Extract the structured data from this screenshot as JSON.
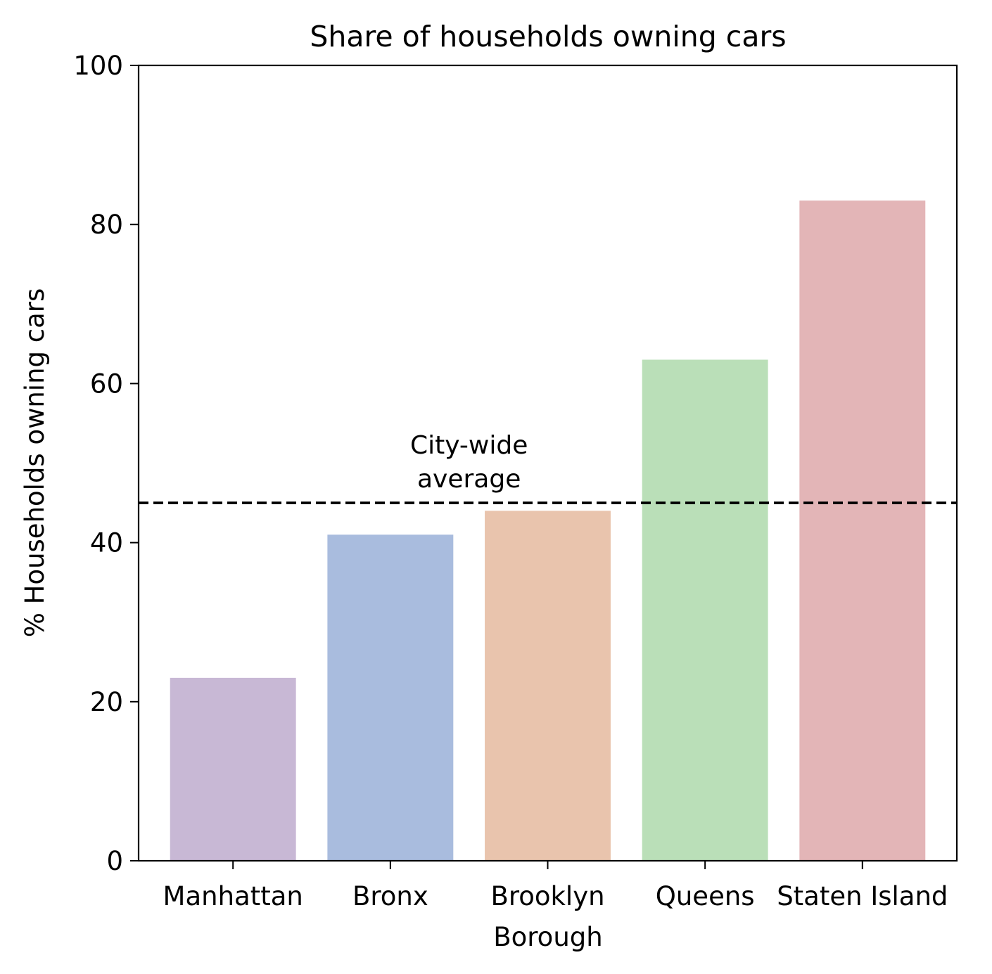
{
  "chart_data": {
    "type": "bar",
    "title": "Share of households owning cars",
    "xlabel": "Borough",
    "ylabel": "% Households owning cars",
    "categories": [
      "Manhattan",
      "Bronx",
      "Brooklyn",
      "Queens",
      "Staten Island"
    ],
    "values": [
      23,
      41,
      44,
      63,
      83
    ],
    "colors": [
      "#c8b8d5",
      "#a9bcde",
      "#e9c4ad",
      "#badfb8",
      "#e3b5b7"
    ],
    "ylim": [
      0,
      100
    ],
    "yticks": [
      0,
      20,
      40,
      60,
      80,
      100
    ],
    "grid": false,
    "reference_line": {
      "value": 45,
      "style": "dashed",
      "color": "#000000",
      "label_lines": [
        "City-wide",
        "average"
      ],
      "label_category_position": 1.5
    }
  }
}
